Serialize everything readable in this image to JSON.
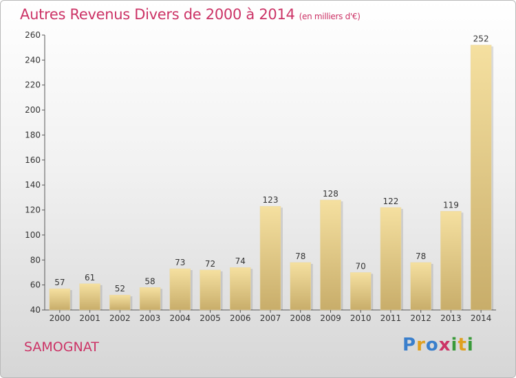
{
  "header": {
    "title": "Autres Revenus Divers de 2000 à 2014",
    "subtitle": "(en milliers d'€)"
  },
  "footer": {
    "commune": "SAMOGNAT",
    "logo_parts": [
      "P",
      "r",
      "o",
      "x",
      "i",
      "t",
      "i"
    ]
  },
  "colors": {
    "title": "#cc3366",
    "bar_light": "#f5e0a0",
    "bar_dark": "#c8ad6a",
    "axis": "#555555"
  },
  "chart_data": {
    "type": "bar",
    "title": "Autres Revenus Divers de 2000 à 2014",
    "subtitle": "(en milliers d'€)",
    "xlabel": "",
    "ylabel": "",
    "categories": [
      "2000",
      "2001",
      "2002",
      "2003",
      "2004",
      "2005",
      "2006",
      "2007",
      "2008",
      "2009",
      "2010",
      "2011",
      "2012",
      "2013",
      "2014"
    ],
    "values": [
      57,
      61,
      52,
      58,
      73,
      72,
      74,
      123,
      78,
      128,
      70,
      122,
      78,
      119,
      252
    ],
    "ylim": [
      40,
      260
    ],
    "yticks": [
      40,
      60,
      80,
      100,
      120,
      140,
      160,
      180,
      200,
      220,
      240,
      260
    ],
    "grid": false,
    "legend": "none"
  }
}
